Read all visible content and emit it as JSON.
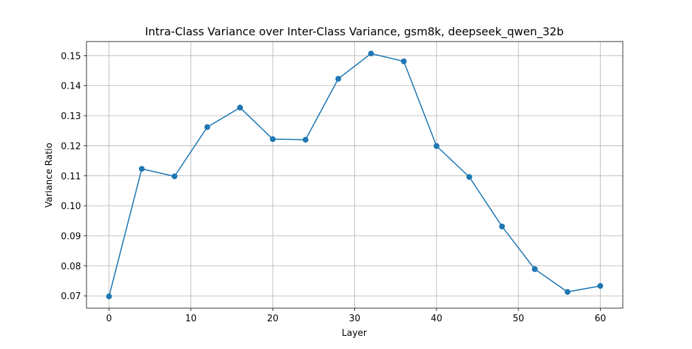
{
  "chart_data": {
    "type": "line",
    "title": "Intra-Class Variance over Inter-Class Variance, gsm8k, deepseek_qwen_32b",
    "xlabel": "Layer",
    "ylabel": "Variance Ratio",
    "xlim": [
      -2.75,
      62.75
    ],
    "ylim": [
      0.0659,
      0.1547
    ],
    "xticks": [
      0,
      10,
      20,
      30,
      40,
      50,
      60
    ],
    "xtick_labels": [
      "0",
      "10",
      "20",
      "30",
      "40",
      "50",
      "60"
    ],
    "yticks": [
      0.07,
      0.08,
      0.09,
      0.1,
      0.11,
      0.12,
      0.13,
      0.14,
      0.15
    ],
    "ytick_labels": [
      "0.07",
      "0.08",
      "0.09",
      "0.10",
      "0.11",
      "0.12",
      "0.13",
      "0.14",
      "0.15"
    ],
    "grid": true,
    "legend": "none",
    "series": [
      {
        "color": "#1f77b4",
        "marker": "circle",
        "x": [
          0,
          4,
          8,
          12,
          16,
          20,
          24,
          28,
          32,
          36,
          40,
          44,
          48,
          52,
          56,
          60
        ],
        "y": [
          0.0698,
          0.1123,
          0.1098,
          0.1262,
          0.1327,
          0.1222,
          0.122,
          0.1423,
          0.1507,
          0.1481,
          0.1199,
          0.1096,
          0.0931,
          0.0789,
          0.0713,
          0.0733
        ]
      }
    ]
  }
}
